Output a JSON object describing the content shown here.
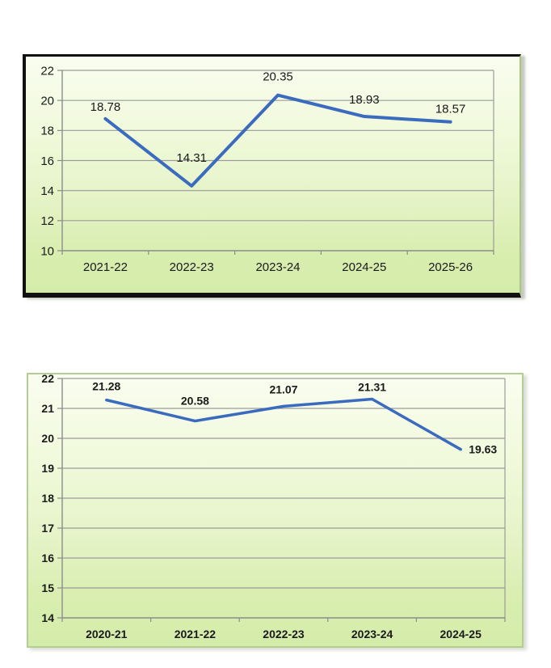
{
  "page": {
    "background": "#ffffff"
  },
  "colors": {
    "line": "#3a6bbe",
    "gridline": "#9b9b9b",
    "axis": "#8c8c8c",
    "text": "#1a1a1a",
    "plot_bg_top": "#f9fdf0",
    "plot_bg_bottom": "#d4ecaa",
    "frame_dark": "#111111",
    "frame_light_green": "#b6cd92"
  },
  "chart_data": [
    {
      "type": "line",
      "title": "",
      "xlabel": "",
      "ylabel": "",
      "legend": "none",
      "grid": true,
      "categories": [
        "2021-22",
        "2022-23",
        "2023-24",
        "2024-25",
        "2025-26"
      ],
      "series": [
        {
          "name": "series-1",
          "values": [
            18.78,
            14.31,
            20.35,
            18.93,
            18.57
          ]
        }
      ],
      "data_labels": [
        "18.78",
        "14.31",
        "20.35",
        "18.93",
        "18.57"
      ],
      "label_positions": [
        "above",
        "above",
        "above",
        "above",
        "above"
      ],
      "ylim": [
        10,
        22
      ],
      "yticks": [
        10,
        12,
        14,
        16,
        18,
        20,
        22
      ],
      "line_color": "#3a6bbe"
    },
    {
      "type": "line",
      "title": "",
      "xlabel": "",
      "ylabel": "",
      "legend": "none",
      "grid": true,
      "categories": [
        "2020-21",
        "2021-22",
        "2022-23",
        "2023-24",
        "2024-25"
      ],
      "series": [
        {
          "name": "series-1",
          "values": [
            21.28,
            20.58,
            21.07,
            21.31,
            19.63
          ]
        }
      ],
      "data_labels": [
        "21.28",
        "20.58",
        "21.07",
        "21.31",
        "19.63"
      ],
      "label_positions": [
        "above",
        "above",
        "above",
        "above",
        "right"
      ],
      "ylim": [
        14,
        22
      ],
      "yticks": [
        14,
        15,
        16,
        17,
        18,
        19,
        20,
        21,
        22
      ],
      "line_color": "#3a6bbe"
    }
  ]
}
